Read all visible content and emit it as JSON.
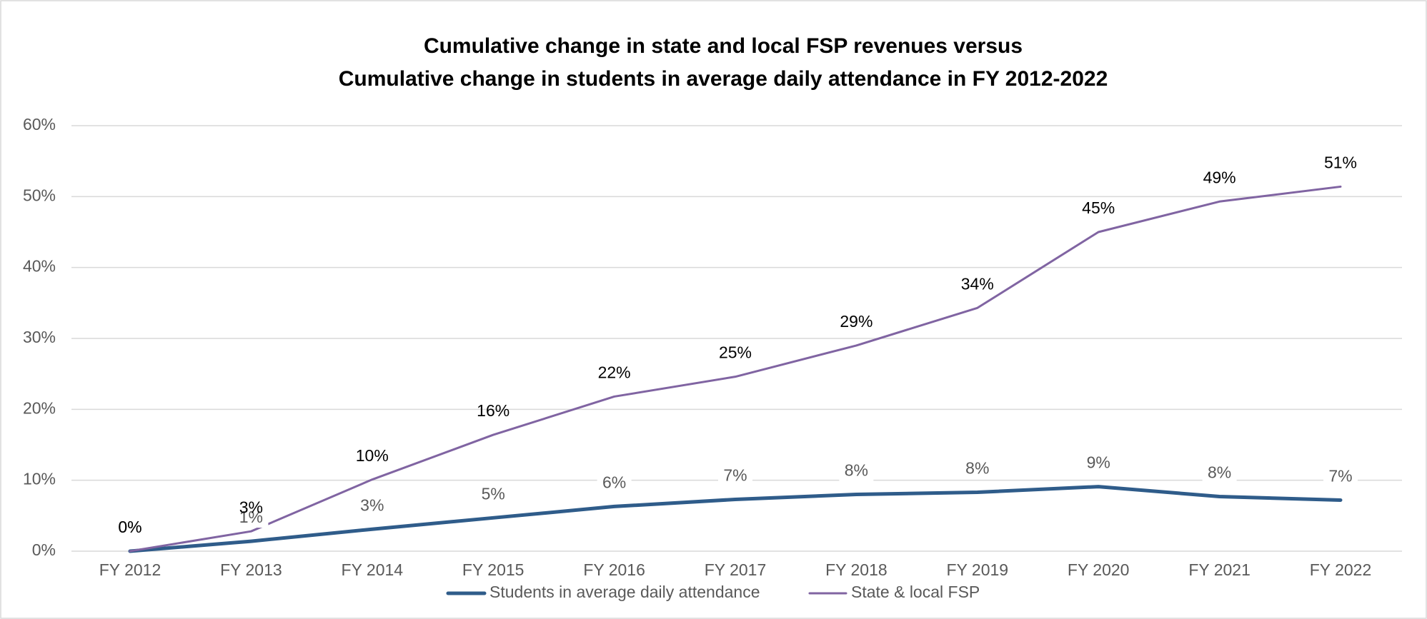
{
  "chart_data": {
    "type": "line",
    "title": [
      "Cumulative change in state and local FSP revenues versus",
      "Cumulative change in students in average daily attendance in FY 2012-2022"
    ],
    "categories": [
      "FY 2012",
      "FY 2013",
      "FY 2014",
      "FY 2015",
      "FY 2016",
      "FY 2017",
      "FY 2018",
      "FY 2019",
      "FY 2020",
      "FY 2021",
      "FY 2022"
    ],
    "series": [
      {
        "name": "Students in average daily attendance",
        "color": "#2f5c8a",
        "values": [
          0,
          1.4,
          3.1,
          4.7,
          6.3,
          7.3,
          8.0,
          8.3,
          9.1,
          7.7,
          7.2
        ],
        "value_labels": [
          "0%",
          "1%",
          "3%",
          "5%",
          "6%",
          "7%",
          "8%",
          "8%",
          "9%",
          "8%",
          "7%"
        ]
      },
      {
        "name": "State & local FSP",
        "color": "#8064a2",
        "values": [
          0,
          2.8,
          10.1,
          16.4,
          21.8,
          24.6,
          29.0,
          34.3,
          45.0,
          49.3,
          51.4
        ],
        "value_labels": [
          "0%",
          "3%",
          "10%",
          "16%",
          "22%",
          "25%",
          "29%",
          "34%",
          "45%",
          "49%",
          "51%"
        ]
      }
    ],
    "ylim": [
      0,
      60
    ],
    "yticks": [
      {
        "value": 0,
        "label": "0%"
      },
      {
        "value": 10,
        "label": "10%"
      },
      {
        "value": 20,
        "label": "20%"
      },
      {
        "value": 30,
        "label": "30%"
      },
      {
        "value": 40,
        "label": "40%"
      },
      {
        "value": 50,
        "label": "50%"
      },
      {
        "value": 60,
        "label": "60%"
      }
    ],
    "grid": true,
    "legend": "bottom"
  }
}
